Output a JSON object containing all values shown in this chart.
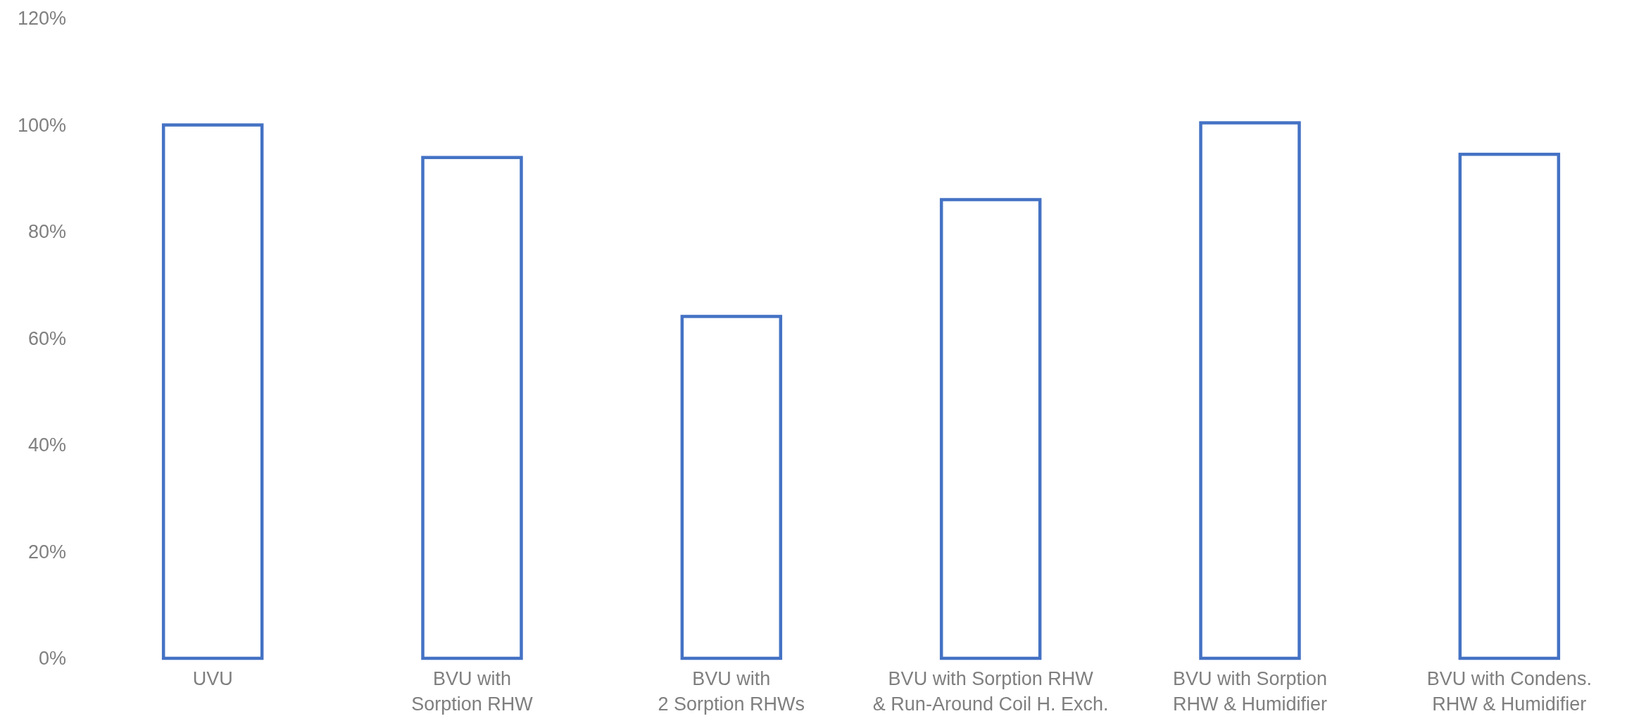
{
  "chart_data": {
    "type": "bar",
    "categories": [
      "UVU",
      "BVU with\nSorption RHW",
      "BVU with\n2 Sorption RHWs",
      "BVU with Sorption RHW\n& Run-Around Coil H. Exch.",
      "BVU with Sorption\nRHW & Humidifier",
      "BVU with Condens.\nRHW & Humidifier"
    ],
    "values": [
      100,
      93.9,
      64.1,
      86,
      100.4,
      94.5
    ],
    "color": "#4472c4",
    "ylim": [
      0,
      120
    ],
    "yticks": [
      {
        "value": 0,
        "label": "0%"
      },
      {
        "value": 20,
        "label": "20%"
      },
      {
        "value": 40,
        "label": "40%"
      },
      {
        "value": 60,
        "label": "60%"
      },
      {
        "value": 80,
        "label": "80%"
      },
      {
        "value": 100,
        "label": "100%"
      },
      {
        "value": 120,
        "label": "120%"
      }
    ],
    "grid": false
  }
}
